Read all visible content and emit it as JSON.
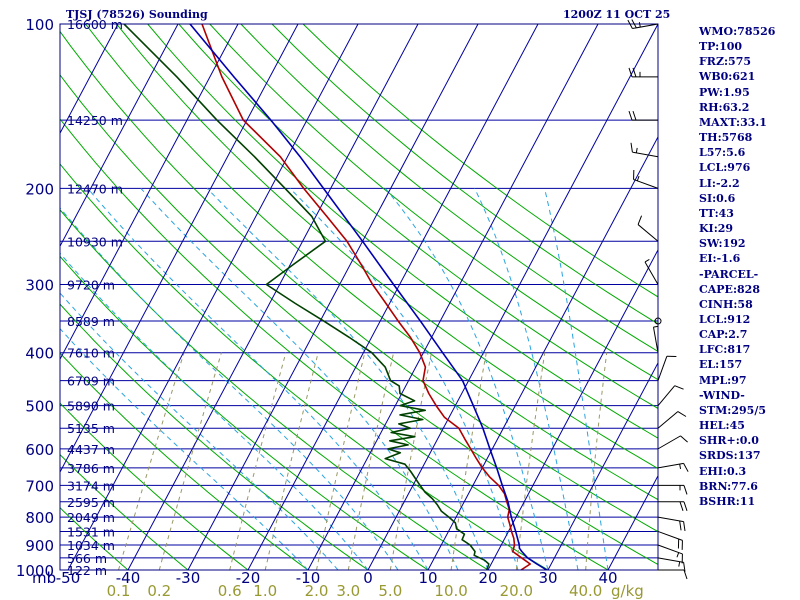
{
  "header": {
    "station": "TJSJ (78526) Sounding",
    "time": "1200Z 11 OCT 25"
  },
  "stats": [
    "WMO:78526",
    "TP:100",
    "FRZ:575",
    "WB0:621",
    "PW:1.95",
    "RH:63.2",
    "MAXT:33.1",
    "TH:5768",
    "L57:5.6",
    "LCL:976",
    "LI:-2.2",
    "SI:0.6",
    "TT:43",
    "KI:29",
    "SW:192",
    "EI:-1.6",
    "-PARCEL-",
    "CAPE:828",
    "CINH:58",
    "LCL:912",
    "CAP:2.7",
    "LFC:817",
    "EL:157",
    "MPL:97",
    "-WIND-",
    "STM:295/5",
    "HEL:45",
    "SHR+:0.0",
    "SRDS:137",
    "EHI:0.3",
    "BRN:77.6",
    "BSHR:11"
  ],
  "colors": {
    "frame": "#000080",
    "isobar": "#0000a0",
    "isotherm": "#0000a0",
    "dry_adiabat": "#00aa00",
    "moist_adiabat": "#2aa4e0",
    "mixing_ratio": "#999966",
    "temperature": "#b00000",
    "dewpoint": "#004000",
    "parcel": "#0000b0",
    "labels": "#000080",
    "mixing_labels": "#999933"
  },
  "chart_data": {
    "type": "line",
    "title": "TJSJ (78526) Sounding",
    "skew_t": true,
    "log_pressure_axis": true,
    "ylim": [
      1000,
      100
    ],
    "xlim": [
      -50,
      50
    ],
    "pressure_labels": [
      {
        "p": 100,
        "label": "100"
      },
      {
        "p": 200,
        "label": "200"
      },
      {
        "p": 300,
        "label": "300"
      },
      {
        "p": 400,
        "label": "400"
      },
      {
        "p": 500,
        "label": "500"
      },
      {
        "p": 600,
        "label": "600"
      },
      {
        "p": 700,
        "label": "700"
      },
      {
        "p": 800,
        "label": "800"
      },
      {
        "p": 900,
        "label": "900"
      },
      {
        "p": 1000,
        "label": "1000"
      }
    ],
    "y_axis_unit": "mb",
    "height_labels": [
      {
        "p": 100,
        "label": "16600 m"
      },
      {
        "p": 150,
        "label": "14250 m"
      },
      {
        "p": 200,
        "label": "12470 m"
      },
      {
        "p": 250,
        "label": "10930 m"
      },
      {
        "p": 300,
        "label": "9720 m"
      },
      {
        "p": 350,
        "label": "8589 m"
      },
      {
        "p": 400,
        "label": "7610 m"
      },
      {
        "p": 450,
        "label": "6709 m"
      },
      {
        "p": 500,
        "label": "5890 m"
      },
      {
        "p": 550,
        "label": "5135 m"
      },
      {
        "p": 600,
        "label": "4437 m"
      },
      {
        "p": 650,
        "label": "3786 m"
      },
      {
        "p": 700,
        "label": "3174 m"
      },
      {
        "p": 750,
        "label": "2595 m"
      },
      {
        "p": 800,
        "label": "2049 m"
      },
      {
        "p": 850,
        "label": "1531 m"
      },
      {
        "p": 900,
        "label": "1034 m"
      },
      {
        "p": 950,
        "label": "566 m"
      },
      {
        "p": 1000,
        "label": "122 m"
      }
    ],
    "temperature_ticks": [
      {
        "t": -50,
        "label": "-50"
      },
      {
        "t": -40,
        "label": "-40"
      },
      {
        "t": -30,
        "label": "-30"
      },
      {
        "t": -20,
        "label": "-20"
      },
      {
        "t": -10,
        "label": "-10"
      },
      {
        "t": 0,
        "label": "0"
      },
      {
        "t": 10,
        "label": "10"
      },
      {
        "t": 20,
        "label": "20"
      },
      {
        "t": 30,
        "label": "30"
      },
      {
        "t": 40,
        "label": "40"
      }
    ],
    "mixing_ratio_labels": [
      {
        "w": 0.1,
        "label": "0.1"
      },
      {
        "w": 0.2,
        "label": "0.2"
      },
      {
        "w": 0.6,
        "label": "0.6"
      },
      {
        "w": 1.0,
        "label": "1.0"
      },
      {
        "w": 2.0,
        "label": "2.0"
      },
      {
        "w": 3.0,
        "label": "3.0"
      },
      {
        "w": 5.0,
        "label": "5.0"
      },
      {
        "w": 10.0,
        "label": "10.0"
      },
      {
        "w": 20.0,
        "label": "20.0"
      },
      {
        "w": 40.0,
        "label": "40.0"
      }
    ],
    "mixing_ratio_unit": "g/kg",
    "isotherms_c": [
      -140,
      50,
      10
    ],
    "dry_adiabats_c": [
      -40,
      140,
      10
    ],
    "moist_adiabats_c": [
      -10,
      40,
      5
    ],
    "series": [
      {
        "key": "temperature",
        "points": [
          [
            1000,
            25.5
          ],
          [
            975,
            26.5
          ],
          [
            950,
            24.5
          ],
          [
            925,
            22.5
          ],
          [
            900,
            22.2
          ],
          [
            875,
            21.5
          ],
          [
            850,
            20.5
          ],
          [
            825,
            19.6
          ],
          [
            800,
            18.6
          ],
          [
            775,
            18.2
          ],
          [
            750,
            17.1
          ],
          [
            725,
            16.0
          ],
          [
            700,
            14.3
          ],
          [
            675,
            12.0
          ],
          [
            650,
            10.0
          ],
          [
            625,
            8.2
          ],
          [
            600,
            6.4
          ],
          [
            575,
            4.5
          ],
          [
            550,
            2.6
          ],
          [
            525,
            -0.8
          ],
          [
            500,
            -3.2
          ],
          [
            475,
            -5.5
          ],
          [
            450,
            -7.6
          ],
          [
            425,
            -8.4
          ],
          [
            400,
            -10.6
          ],
          [
            375,
            -13.5
          ],
          [
            350,
            -17.0
          ],
          [
            325,
            -20.6
          ],
          [
            300,
            -24.5
          ],
          [
            275,
            -28.3
          ],
          [
            250,
            -32.6
          ],
          [
            225,
            -38.2
          ],
          [
            200,
            -44.5
          ],
          [
            175,
            -51.2
          ],
          [
            150,
            -60.6
          ],
          [
            125,
            -68.0
          ],
          [
            100,
            -76.0
          ]
        ]
      },
      {
        "key": "dewpoint",
        "points": [
          [
            1000,
            19.8
          ],
          [
            975,
            19.6
          ],
          [
            960,
            18.6
          ],
          [
            940,
            16.4
          ],
          [
            925,
            16.2
          ],
          [
            900,
            14.8
          ],
          [
            880,
            13.0
          ],
          [
            860,
            12.9
          ],
          [
            840,
            11.1
          ],
          [
            820,
            10.4
          ],
          [
            800,
            8.8
          ],
          [
            780,
            7.0
          ],
          [
            760,
            5.8
          ],
          [
            740,
            4.4
          ],
          [
            720,
            2.6
          ],
          [
            700,
            1.2
          ],
          [
            680,
            -0.2
          ],
          [
            660,
            -1.6
          ],
          [
            640,
            -3.2
          ],
          [
            625,
            -7.0
          ],
          [
            610,
            -5.0
          ],
          [
            600,
            -7.4
          ],
          [
            590,
            -4.4
          ],
          [
            580,
            -7.8
          ],
          [
            570,
            -4.0
          ],
          [
            560,
            -8.3
          ],
          [
            550,
            -5.5
          ],
          [
            540,
            -7.8
          ],
          [
            530,
            -4.2
          ],
          [
            520,
            -8.4
          ],
          [
            510,
            -4.6
          ],
          [
            500,
            -9.2
          ],
          [
            490,
            -7.2
          ],
          [
            475,
            -10.3
          ],
          [
            460,
            -11.1
          ],
          [
            450,
            -13.0
          ],
          [
            425,
            -15.1
          ],
          [
            400,
            -18.6
          ],
          [
            375,
            -23.7
          ],
          [
            350,
            -29.4
          ],
          [
            325,
            -35.7
          ],
          [
            300,
            -42.2
          ],
          [
            275,
            -39.4
          ],
          [
            250,
            -36.2
          ],
          [
            225,
            -40.7
          ],
          [
            200,
            -47.6
          ],
          [
            175,
            -55.5
          ],
          [
            150,
            -65.0
          ],
          [
            125,
            -75.5
          ],
          [
            100,
            -89.0
          ]
        ]
      },
      {
        "key": "parcel",
        "points": [
          [
            1000,
            29.8
          ],
          [
            975,
            27.6
          ],
          [
            950,
            25.5
          ],
          [
            925,
            24.0
          ],
          [
            912,
            23.3
          ],
          [
            900,
            23.0
          ],
          [
            850,
            21.2
          ],
          [
            800,
            19.2
          ],
          [
            750,
            17.3
          ],
          [
            700,
            14.9
          ],
          [
            650,
            12.4
          ],
          [
            600,
            9.6
          ],
          [
            550,
            6.6
          ],
          [
            500,
            3.0
          ],
          [
            450,
            -1.0
          ],
          [
            400,
            -6.8
          ],
          [
            350,
            -13.3
          ],
          [
            300,
            -21.0
          ],
          [
            250,
            -30.0
          ],
          [
            200,
            -41.2
          ],
          [
            175,
            -47.9
          ],
          [
            150,
            -56.0
          ],
          [
            125,
            -66.0
          ],
          [
            100,
            -78.0
          ]
        ]
      }
    ],
    "wind_barbs": [
      {
        "p": 1000,
        "dir": 90,
        "spd": 10
      },
      {
        "p": 950,
        "dir": 100,
        "spd": 15
      },
      {
        "p": 900,
        "dir": 110,
        "spd": 15
      },
      {
        "p": 850,
        "dir": 110,
        "spd": 20
      },
      {
        "p": 800,
        "dir": 100,
        "spd": 20
      },
      {
        "p": 750,
        "dir": 90,
        "spd": 20
      },
      {
        "p": 700,
        "dir": 90,
        "spd": 15
      },
      {
        "p": 650,
        "dir": 80,
        "spd": 15
      },
      {
        "p": 600,
        "dir": 60,
        "spd": 10
      },
      {
        "p": 550,
        "dir": 50,
        "spd": 10
      },
      {
        "p": 500,
        "dir": 40,
        "spd": 10
      },
      {
        "p": 450,
        "dir": 20,
        "spd": 10
      },
      {
        "p": 400,
        "dir": 350,
        "spd": 5
      },
      {
        "p": 350,
        "dir": 0,
        "spd": 0
      },
      {
        "p": 300,
        "dir": 330,
        "spd": 5
      },
      {
        "p": 250,
        "dir": 310,
        "spd": 10
      },
      {
        "p": 200,
        "dir": 290,
        "spd": 15
      },
      {
        "p": 175,
        "dir": 280,
        "spd": 15
      },
      {
        "p": 150,
        "dir": 270,
        "spd": 20
      },
      {
        "p": 125,
        "dir": 270,
        "spd": 25
      },
      {
        "p": 100,
        "dir": 260,
        "spd": 25
      }
    ]
  }
}
